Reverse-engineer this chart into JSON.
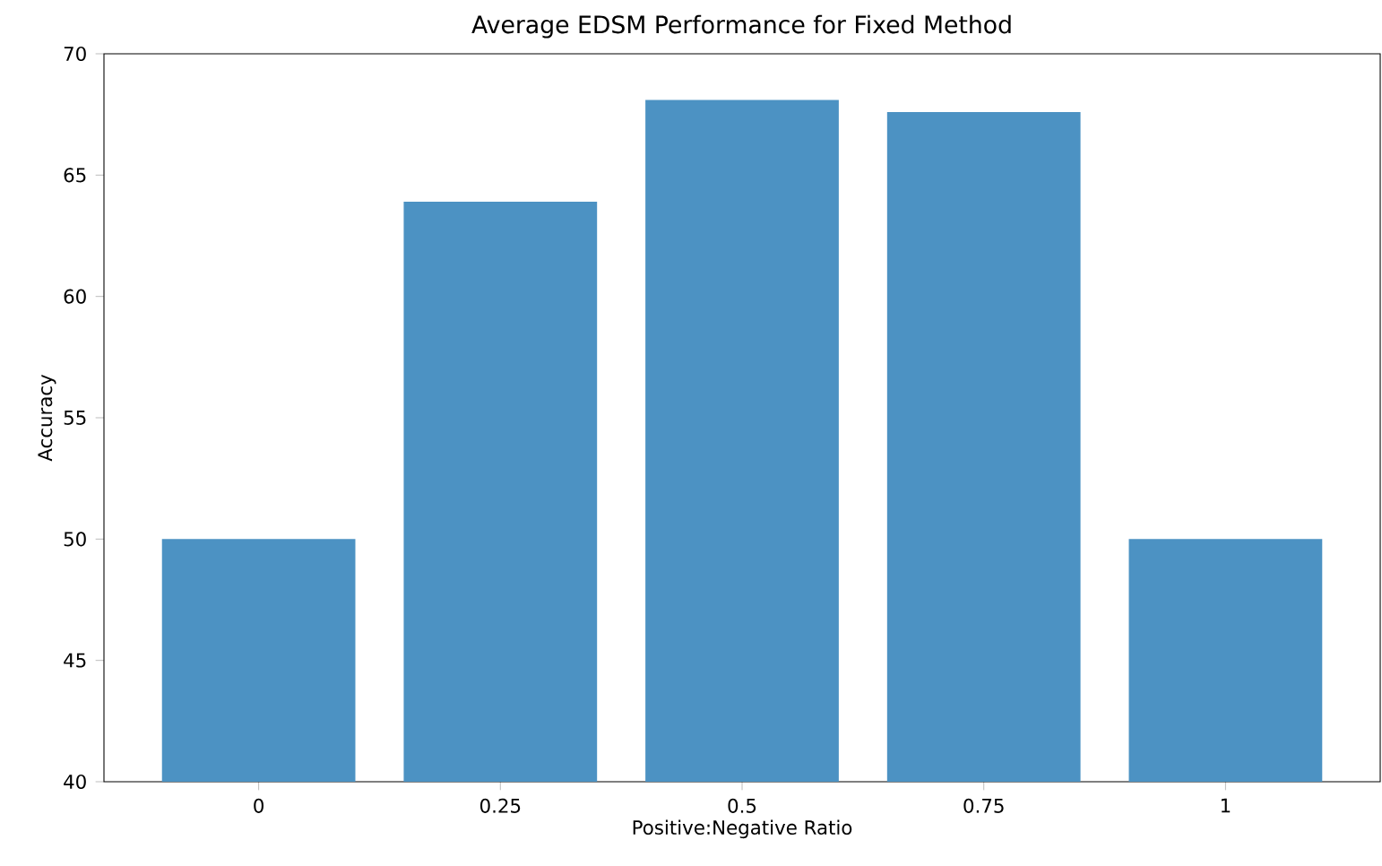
{
  "chart_data": {
    "type": "bar",
    "title": "Average EDSM Performance for Fixed Method",
    "xlabel": "Positive:Negative Ratio",
    "ylabel": "Accuracy",
    "categories": [
      "0",
      "0.25",
      "0.5",
      "0.75",
      "1"
    ],
    "values": [
      50,
      63.9,
      68.1,
      67.6,
      50
    ],
    "color": "#4c92c3",
    "ylim": [
      40,
      70
    ],
    "yticks": [
      40,
      45,
      50,
      55,
      60,
      65,
      70
    ],
    "grid": false
  }
}
